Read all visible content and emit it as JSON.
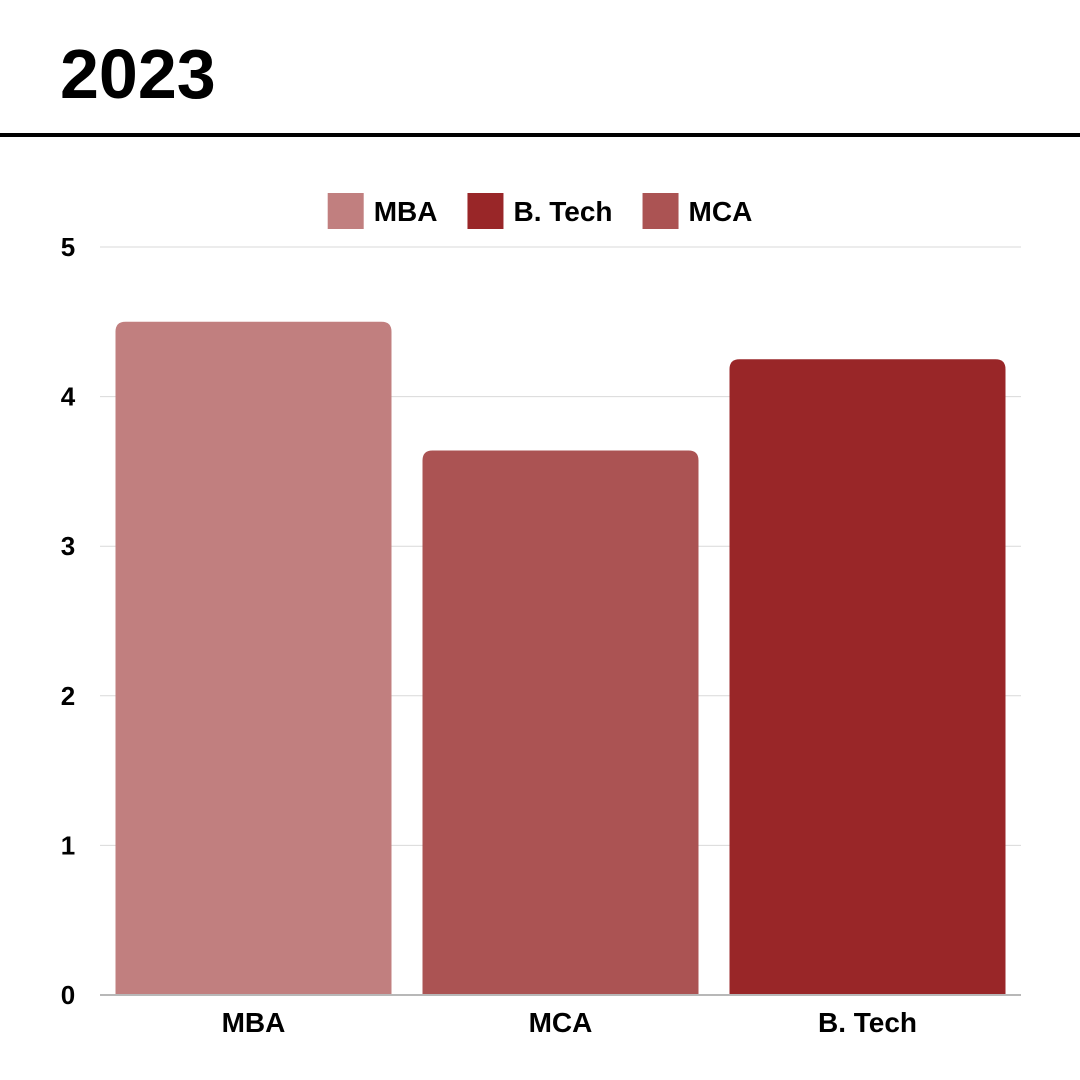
{
  "header": {
    "title": "2023"
  },
  "chart_data": {
    "type": "bar",
    "categories": [
      "MBA",
      "MCA",
      "B. Tech"
    ],
    "values": [
      4.5,
      3.64,
      4.25
    ],
    "bar_colors": [
      "#C17F7F",
      "#AB5353",
      "#992628"
    ],
    "legend": [
      {
        "label": "MBA",
        "color": "#C17F7F"
      },
      {
        "label": "B. Tech",
        "color": "#992628"
      },
      {
        "label": "MCA",
        "color": "#AB5353"
      }
    ],
    "legend_position": "top",
    "ylim": [
      0,
      5
    ],
    "yticks": [
      0,
      1,
      2,
      3,
      4,
      5
    ],
    "grid": true,
    "xlabel": "",
    "ylabel": ""
  }
}
